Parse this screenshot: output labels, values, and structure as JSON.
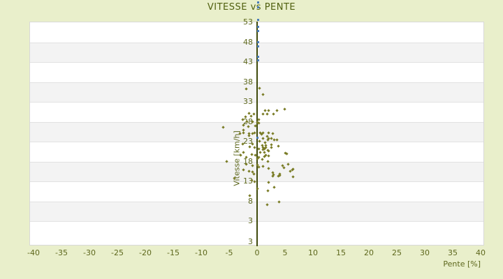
{
  "title": "VITESSE vs PENTE",
  "colors": {
    "background": "#e9efcb",
    "plot_band_light": "#ffffff",
    "plot_band_dark": "#f3f3f3",
    "gridline": "#e2e2e2",
    "axis_line": "#3f4a0c",
    "text": "#5d671c",
    "title_text": "#50600f",
    "series_olive": "#7a7c26",
    "series_blue": "#4a7cb8"
  },
  "chart_data": {
    "type": "scatter",
    "title": "VITESSE vs PENTE",
    "xlabel": "Pente [%]",
    "ylabel": "Vitesse [km/h]",
    "xlim": [
      -40,
      40
    ],
    "ylim": [
      -3,
      53
    ],
    "x_ticks": [
      -40,
      -35,
      -30,
      -25,
      -20,
      -15,
      -10,
      -5,
      0,
      5,
      10,
      15,
      20,
      25,
      30,
      35,
      40
    ],
    "y_ticks": [
      53,
      48,
      43,
      38,
      33,
      28,
      23,
      18,
      13,
      8,
      3
    ],
    "y_axis_bottom_label": "3",
    "grid": "horizontal-bands",
    "legend": "none",
    "series": [
      {
        "name": "serie-1",
        "color": "#7a7c26",
        "points": [
          [
            -2.0,
            36.1
          ],
          [
            0.4,
            36.3
          ],
          [
            1.0,
            34.7
          ],
          [
            -1.5,
            30.0
          ],
          [
            -1.1,
            29.3
          ],
          [
            -0.6,
            29.8
          ],
          [
            1.1,
            29.8
          ],
          [
            1.4,
            30.7
          ],
          [
            1.8,
            29.8
          ],
          [
            2.0,
            30.7
          ],
          [
            2.9,
            29.7
          ],
          [
            3.6,
            30.7
          ],
          [
            4.9,
            31.0
          ],
          [
            -2.1,
            29.1
          ],
          [
            -2.6,
            28.3
          ],
          [
            -1.8,
            27.9
          ],
          [
            -0.8,
            27.9
          ],
          [
            0.0,
            27.6
          ],
          [
            0.3,
            28.4
          ],
          [
            -2.4,
            27.0
          ],
          [
            -1.6,
            26.6
          ],
          [
            -0.3,
            26.7
          ],
          [
            0.3,
            27.4
          ],
          [
            -6.1,
            26.5
          ],
          [
            -2.5,
            25.7
          ],
          [
            -3.1,
            24.9
          ],
          [
            -2.4,
            25.1
          ],
          [
            -1.4,
            24.8
          ],
          [
            -0.5,
            25.0
          ],
          [
            0.5,
            25.0
          ],
          [
            0.8,
            24.6
          ],
          [
            1.1,
            25.0
          ],
          [
            2.1,
            25.1
          ],
          [
            2.8,
            24.8
          ],
          [
            -0.8,
            24.8
          ],
          [
            -1.4,
            24.3
          ],
          [
            1.8,
            24.1
          ],
          [
            0.4,
            22.9
          ],
          [
            1.0,
            23.6
          ],
          [
            2.1,
            23.6
          ],
          [
            2.5,
            23.6
          ],
          [
            3.1,
            23.2
          ],
          [
            3.5,
            23.2
          ],
          [
            1.9,
            23.2
          ],
          [
            -0.8,
            22.2
          ],
          [
            -2.6,
            22.2
          ],
          [
            2.5,
            22.0
          ],
          [
            1.4,
            22.5
          ],
          [
            -1.3,
            21.5
          ],
          [
            -0.4,
            21.3
          ],
          [
            0.3,
            21.0
          ],
          [
            0.9,
            21.9
          ],
          [
            1.1,
            20.8
          ],
          [
            1.5,
            21.9
          ],
          [
            1.0,
            21.3
          ],
          [
            1.6,
            21.3
          ],
          [
            1.9,
            20.6
          ],
          [
            2.5,
            21.3
          ],
          [
            3.8,
            21.7
          ],
          [
            1.3,
            21.0
          ],
          [
            -2.5,
            20.1
          ],
          [
            -1.0,
            19.6
          ],
          [
            -0.3,
            19.4
          ],
          [
            0.6,
            20.1
          ],
          [
            1.3,
            20.1
          ],
          [
            2.0,
            20.5
          ],
          [
            1.6,
            19.4
          ],
          [
            2.1,
            19.2
          ],
          [
            1.3,
            19.1
          ],
          [
            0.3,
            18.9
          ],
          [
            5.0,
            19.9
          ],
          [
            5.3,
            19.8
          ],
          [
            -3.0,
            19.4
          ],
          [
            -1.9,
            18.9
          ],
          [
            0.0,
            18.5
          ],
          [
            0.9,
            18.4
          ],
          [
            1.9,
            17.8
          ],
          [
            -5.4,
            17.8
          ],
          [
            0.1,
            17.0
          ],
          [
            -1.9,
            17.2
          ],
          [
            -0.8,
            16.8
          ],
          [
            0.3,
            16.4
          ],
          [
            1.0,
            16.6
          ],
          [
            2.0,
            16.1
          ],
          [
            4.6,
            16.8
          ],
          [
            4.8,
            16.3
          ],
          [
            5.6,
            17.2
          ],
          [
            5.9,
            15.4
          ],
          [
            6.3,
            15.7
          ],
          [
            6.4,
            15.9
          ],
          [
            -2.5,
            15.7
          ],
          [
            -1.4,
            15.4
          ],
          [
            -0.8,
            15.2
          ],
          [
            -0.6,
            14.7
          ],
          [
            2.8,
            15.0
          ],
          [
            2.8,
            14.2
          ],
          [
            2.9,
            14.5
          ],
          [
            3.8,
            14.2
          ],
          [
            4.0,
            14.6
          ],
          [
            4.0,
            14.3
          ],
          [
            6.4,
            14.0
          ],
          [
            -4.1,
            13.7
          ],
          [
            -1.0,
            13.1
          ],
          [
            -0.4,
            12.8
          ],
          [
            2.0,
            12.6
          ],
          [
            0.0,
            11.0
          ],
          [
            1.9,
            10.5
          ],
          [
            3.1,
            11.4
          ],
          [
            -1.3,
            9.3
          ],
          [
            1.8,
            6.9
          ],
          [
            3.9,
            7.6
          ]
        ]
      },
      {
        "name": "serie-2",
        "color": "#4a7cb8",
        "points": [
          [
            0.2,
            57.9
          ],
          [
            0.2,
            56.6
          ],
          [
            0.2,
            53.4
          ],
          [
            0.2,
            51.6
          ],
          [
            0.2,
            50.7
          ],
          [
            0.2,
            47.8
          ],
          [
            0.2,
            46.7
          ],
          [
            0.2,
            44.1
          ],
          [
            0.2,
            43.2
          ],
          [
            0.1,
            23.8
          ]
        ]
      }
    ]
  }
}
